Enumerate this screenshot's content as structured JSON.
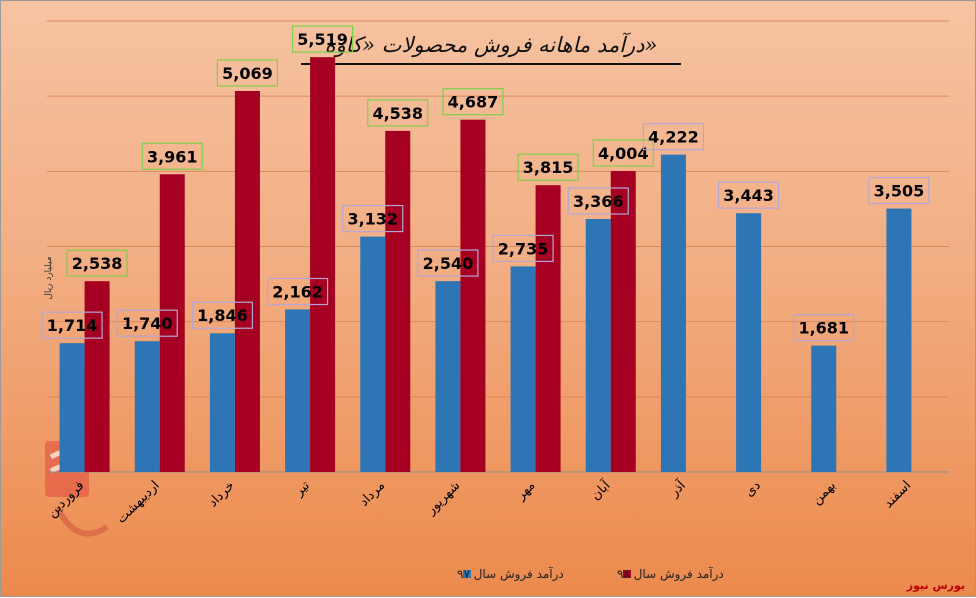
{
  "source_label": "بورس نیوز",
  "chart_data": {
    "type": "bar",
    "title": "درآمد ماهانه فروش محصولات «کاوه»",
    "ylabel": "میلیارد ریال",
    "xlabel": "",
    "ylim": [
      0,
      6000
    ],
    "grid": true,
    "legend_position": "bottom",
    "categories": [
      "فروردین",
      "اردیبهشت",
      "خرداد",
      "تیر",
      "مرداد",
      "شهریور",
      "مهر",
      "آبان",
      "آذر",
      "دی",
      "بهمن",
      "اسفند"
    ],
    "series": [
      {
        "name": "درآمد فروش سال ۹۷",
        "color": "#2e75b6",
        "label_border": "#b4a7d6",
        "values": [
          1714,
          1740,
          1846,
          2162,
          3132,
          2540,
          2735,
          3366,
          4222,
          3443,
          1681,
          3505
        ],
        "labels": [
          "1,714",
          "1,740",
          "1,846",
          "2,162",
          "3,132",
          "2,540",
          "2,735",
          "3,366",
          "4,222",
          "3,443",
          "1,681",
          "3,505"
        ]
      },
      {
        "name": "درآمد فروش سال ۹۸",
        "color": "#a50021",
        "label_border": "#7fd04a",
        "values": [
          2538,
          3961,
          5069,
          5519,
          4538,
          4687,
          3815,
          4004,
          null,
          null,
          null,
          null
        ],
        "labels": [
          "2,538",
          "3,961",
          "5,069",
          "5,519",
          "4,538",
          "4,687",
          "3,815",
          "4,004",
          "",
          "",
          "",
          ""
        ]
      }
    ]
  }
}
